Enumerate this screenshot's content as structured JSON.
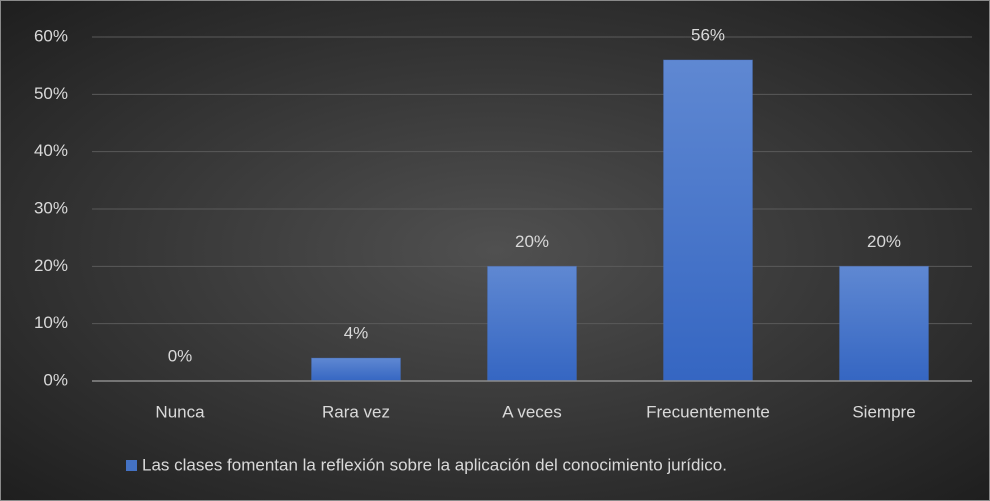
{
  "chart_data": {
    "type": "bar",
    "categories": [
      "Nunca",
      "Rara vez",
      "A veces",
      "Frecuentemente",
      "Siempre"
    ],
    "series": [
      {
        "name": "Las clases fomentan la reflexión sobre la aplicación del conocimiento jurídico.",
        "color": "#4472c4",
        "values": [
          0,
          4,
          20,
          56,
          20
        ],
        "value_labels": [
          "0%",
          "4%",
          "20%",
          "56%",
          "20%"
        ]
      }
    ],
    "ylim": [
      0,
      60
    ],
    "yticks": [
      {
        "value": 0,
        "label": "0%"
      },
      {
        "value": 10,
        "label": "10%"
      },
      {
        "value": 20,
        "label": "20%"
      },
      {
        "value": 30,
        "label": "30%"
      },
      {
        "value": 40,
        "label": "40%"
      },
      {
        "value": 50,
        "label": "50%"
      },
      {
        "value": 60,
        "label": "60%"
      }
    ],
    "grid": true,
    "legend": "bottom"
  }
}
